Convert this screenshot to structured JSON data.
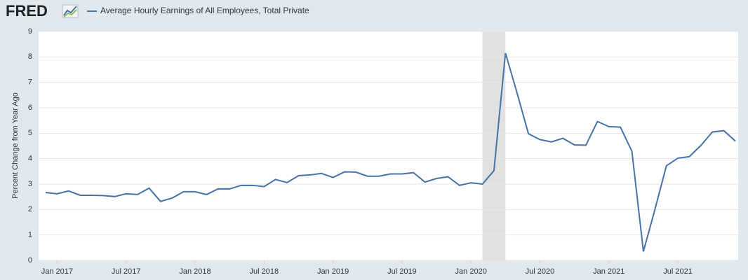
{
  "logo": "FRED",
  "chart_data": {
    "type": "line",
    "ylabel": "Percent Change from Year Ago",
    "x": [
      "2016-12",
      "2017-01",
      "2017-02",
      "2017-03",
      "2017-04",
      "2017-05",
      "2017-06",
      "2017-07",
      "2017-08",
      "2017-09",
      "2017-10",
      "2017-11",
      "2017-12",
      "2018-01",
      "2018-02",
      "2018-03",
      "2018-04",
      "2018-05",
      "2018-06",
      "2018-07",
      "2018-08",
      "2018-09",
      "2018-10",
      "2018-11",
      "2018-12",
      "2019-01",
      "2019-02",
      "2019-03",
      "2019-04",
      "2019-05",
      "2019-06",
      "2019-07",
      "2019-08",
      "2019-09",
      "2019-10",
      "2019-11",
      "2019-12",
      "2020-01",
      "2020-02",
      "2020-03",
      "2020-04",
      "2020-05",
      "2020-06",
      "2020-07",
      "2020-08",
      "2020-09",
      "2020-10",
      "2020-11",
      "2020-12",
      "2021-01",
      "2021-02",
      "2021-03",
      "2021-04",
      "2021-05",
      "2021-06",
      "2021-07",
      "2021-08",
      "2021-09",
      "2021-10",
      "2021-11",
      "2021-12"
    ],
    "series": [
      {
        "name": "Average Hourly Earnings of All Employees, Total Private",
        "color": "#4572a7",
        "values": [
          2.67,
          2.62,
          2.73,
          2.56,
          2.56,
          2.55,
          2.51,
          2.62,
          2.59,
          2.84,
          2.32,
          2.45,
          2.7,
          2.7,
          2.59,
          2.81,
          2.81,
          2.95,
          2.95,
          2.9,
          3.18,
          3.06,
          3.33,
          3.36,
          3.42,
          3.26,
          3.48,
          3.47,
          3.31,
          3.31,
          3.4,
          3.4,
          3.45,
          3.08,
          3.22,
          3.29,
          2.95,
          3.05,
          3.0,
          3.53,
          8.15,
          6.6,
          4.98,
          4.75,
          4.66,
          4.8,
          4.54,
          4.53,
          5.46,
          5.26,
          5.24,
          4.29,
          0.35,
          2.0,
          3.72,
          4.02,
          4.08,
          4.52,
          5.05,
          5.1,
          4.69
        ]
      }
    ],
    "recessions": [
      {
        "start": "2020-02",
        "end": "2020-04"
      }
    ],
    "ylim": [
      0,
      9
    ],
    "yticks": [
      0,
      1,
      2,
      3,
      4,
      5,
      6,
      7,
      8,
      9
    ],
    "xticks": [
      {
        "value": "2017-01",
        "label": "Jan 2017"
      },
      {
        "value": "2017-07",
        "label": "Jul 2017"
      },
      {
        "value": "2018-01",
        "label": "Jan 2018"
      },
      {
        "value": "2018-07",
        "label": "Jul 2018"
      },
      {
        "value": "2019-01",
        "label": "Jan 2019"
      },
      {
        "value": "2019-07",
        "label": "Jul 2019"
      },
      {
        "value": "2020-01",
        "label": "Jan 2020"
      },
      {
        "value": "2020-07",
        "label": "Jul 2020"
      },
      {
        "value": "2021-01",
        "label": "Jan 2021"
      },
      {
        "value": "2021-07",
        "label": "Jul 2021"
      }
    ],
    "grid": true
  }
}
